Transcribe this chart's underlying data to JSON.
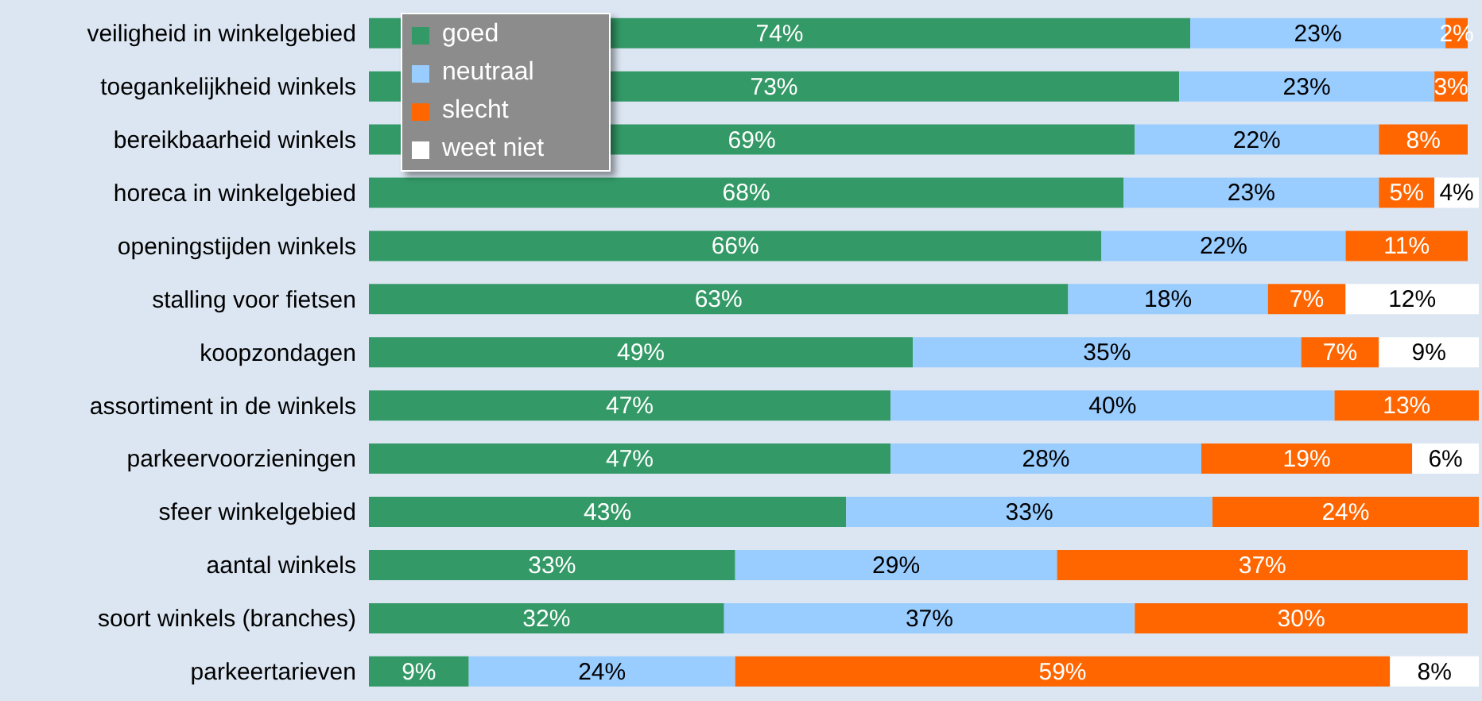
{
  "chart_data": {
    "type": "bar",
    "orientation": "horizontal",
    "stacked": true,
    "legend": "top left",
    "tick_labels": "y",
    "grid": false,
    "categories": [
      "veiligheid in winkelgebied",
      "toegankelijkheid winkels",
      "bereikbaarheid winkels",
      "horeca in winkelgebied",
      "openingstijden winkels",
      "stalling voor fietsen",
      "koopzondagen",
      "assortiment in de winkels",
      "parkeervoorzieningen",
      "sfeer winkelgebied",
      "aantal winkels",
      "soort winkels (branches)",
      "parkeertarieven"
    ],
    "series": [
      {
        "name": "goed",
        "color": "#339966",
        "values": [
          74,
          73,
          69,
          68,
          66,
          63,
          49,
          47,
          47,
          43,
          33,
          32,
          9
        ],
        "value_labels": [
          "74%",
          "73%",
          "69%",
          "68%",
          "66%",
          "63%",
          "49%",
          "47%",
          "47%",
          "43%",
          "33%",
          "32%",
          "9%"
        ]
      },
      {
        "name": "neutraal",
        "color": "#99ccff",
        "values": [
          23,
          23,
          22,
          23,
          22,
          18,
          35,
          40,
          28,
          33,
          29,
          37,
          24
        ],
        "value_labels": [
          "23%",
          "23%",
          "22%",
          "23%",
          "22%",
          "18%",
          "35%",
          "40%",
          "28%",
          "33%",
          "29%",
          "37%",
          "24%"
        ]
      },
      {
        "name": "slecht",
        "color": "#ff6600",
        "values": [
          2,
          3,
          8,
          5,
          11,
          7,
          7,
          13,
          19,
          24,
          37,
          30,
          59
        ],
        "value_labels": [
          "2%",
          "3%",
          "8%",
          "5%",
          "11%",
          "7%",
          "7%",
          "13%",
          "19%",
          "24%",
          "37%",
          "30%",
          "59%"
        ]
      },
      {
        "name": "weet niet",
        "color": "#ffffff",
        "values": [
          null,
          null,
          null,
          4,
          null,
          12,
          9,
          null,
          6,
          null,
          null,
          null,
          8
        ],
        "value_labels": [
          null,
          null,
          null,
          "4%",
          null,
          "12%",
          "9%",
          null,
          "6%",
          null,
          null,
          null,
          "8%"
        ]
      }
    ]
  }
}
